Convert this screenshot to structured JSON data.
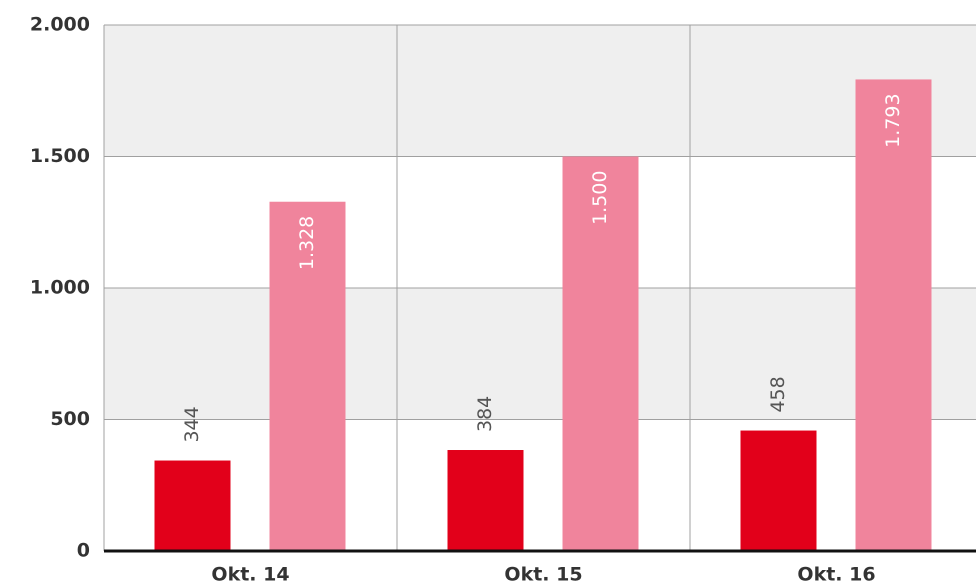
{
  "chart_data": {
    "type": "bar",
    "categories": [
      "Okt. 14",
      "Okt. 15",
      "Okt. 16"
    ],
    "series": [
      {
        "color": "#e2001a",
        "values": [
          344,
          384,
          458
        ]
      },
      {
        "color": "#f0849c",
        "values": [
          1328,
          1500,
          1793
        ],
        "value_labels": [
          "1.328",
          "1.500",
          "1.793"
        ]
      }
    ],
    "ylim": [
      0,
      2000
    ],
    "yticks": [
      {
        "value": 0,
        "label": "0"
      },
      {
        "value": 500,
        "label": "500"
      },
      {
        "value": 1000,
        "label": "1.000"
      },
      {
        "value": 1500,
        "label": "1.500"
      },
      {
        "value": 2000,
        "label": "2.000"
      }
    ],
    "grid": true
  }
}
